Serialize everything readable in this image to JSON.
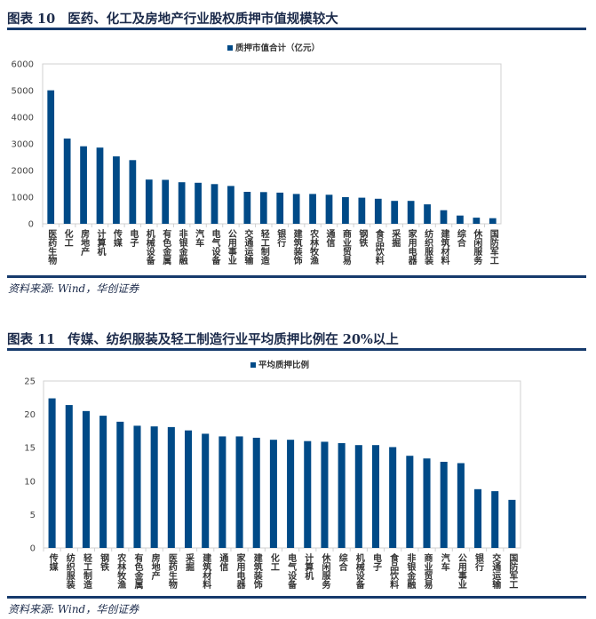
{
  "figures": [
    {
      "label": "图表 10",
      "title": "医药、化工及房地产行业股权质押市值规模较大",
      "source": "资料来源: Wind，华创证券"
    },
    {
      "label": "图表 11",
      "title": "传媒、纺织服装及轻工制造行业平均质押比例在 20%以上",
      "source": "资料来源: Wind，华创证券"
    }
  ],
  "colors": {
    "bar": "#004a87",
    "rule": "#163a6c",
    "axis": "#d0d0d0"
  },
  "chart_data": [
    {
      "type": "bar",
      "title": "",
      "legend": "质押市值合计（亿元）",
      "legend_position": "top",
      "ylim": [
        0,
        6000
      ],
      "yticks": [
        0,
        1000,
        2000,
        3000,
        4000,
        5000,
        6000
      ],
      "grid": false,
      "categories": [
        "医药生物",
        "化工",
        "房地产",
        "计算机",
        "传媒",
        "电子",
        "机械设备",
        "有色金属",
        "非银金融",
        "汽车",
        "电气设备",
        "公用事业",
        "交通运输",
        "轻工制造",
        "银行",
        "建筑装饰",
        "农林牧渔",
        "通信",
        "商业贸易",
        "钢铁",
        "食品饮料",
        "采掘",
        "家用电器",
        "纺织服装",
        "建筑材料",
        "综合",
        "休闲服务",
        "国防军工"
      ],
      "series": [
        {
          "name": "质押市值合计（亿元）",
          "values": [
            5010,
            3200,
            2910,
            2860,
            2530,
            2390,
            1660,
            1650,
            1560,
            1540,
            1490,
            1420,
            1200,
            1190,
            1170,
            1120,
            1120,
            1090,
            1000,
            980,
            940,
            860,
            860,
            730,
            510,
            310,
            230,
            210
          ]
        }
      ]
    },
    {
      "type": "bar",
      "title": "",
      "legend": "平均质押比例",
      "legend_position": "top",
      "ylim": [
        0,
        25
      ],
      "yticks": [
        0,
        5,
        10,
        15,
        20,
        25
      ],
      "grid": false,
      "categories": [
        "传媒",
        "纺织服装",
        "轻工制造",
        "钢铁",
        "农林牧渔",
        "有色金属",
        "房地产",
        "医药生物",
        "采掘",
        "建筑材料",
        "通信",
        "家用电器",
        "建筑装饰",
        "化工",
        "电气设备",
        "计算机",
        "休闲服务",
        "综合",
        "机械设备",
        "电子",
        "食品饮料",
        "非银金融",
        "商业贸易",
        "汽车",
        "公用事业",
        "银行",
        "交通运输",
        "国防军工"
      ],
      "series": [
        {
          "name": "平均质押比例",
          "values": [
            22.4,
            21.4,
            20.5,
            19.8,
            18.9,
            18.3,
            18.2,
            18.1,
            17.6,
            17.1,
            16.7,
            16.7,
            16.5,
            16.2,
            16.2,
            16.0,
            15.9,
            15.7,
            15.4,
            15.4,
            15.1,
            13.8,
            13.4,
            12.9,
            12.7,
            8.8,
            8.5,
            7.2
          ]
        }
      ]
    }
  ]
}
